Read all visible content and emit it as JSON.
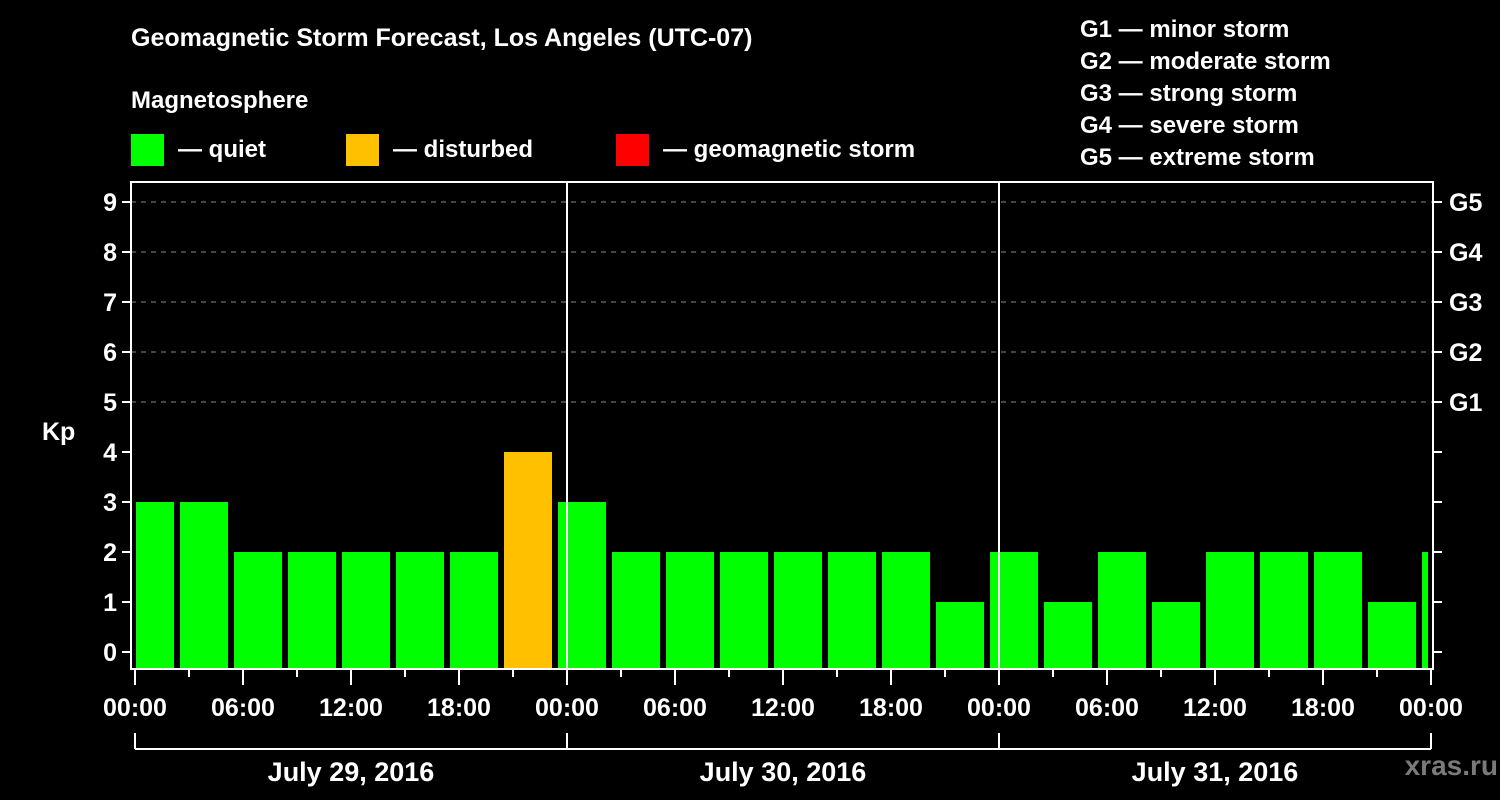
{
  "header": {
    "title": "Geomagnetic Storm Forecast, Los Angeles (UTC-07)",
    "subtitle": "Magnetosphere"
  },
  "legend": [
    {
      "label": "— quiet",
      "color": "#00ff00"
    },
    {
      "label": "— disturbed",
      "color": "#ffc000"
    },
    {
      "label": "— geomagnetic storm",
      "color": "#ff0000"
    }
  ],
  "g_scale": [
    "G1 — minor storm",
    "G2 — moderate storm",
    "G3 — strong storm",
    "G4 — severe storm",
    "G5 — extreme storm"
  ],
  "watermark": "xras.ru",
  "chart_data": {
    "type": "bar",
    "title": "Geomagnetic Storm Forecast, Los Angeles (UTC-07)",
    "ylabel": "Kp",
    "xlabel": "",
    "ylim": [
      0,
      9
    ],
    "yticks": [
      0,
      1,
      2,
      3,
      4,
      5,
      6,
      7,
      8,
      9
    ],
    "right_axis_labels": [
      {
        "kp": 5,
        "label": "G1"
      },
      {
        "kp": 6,
        "label": "G2"
      },
      {
        "kp": 7,
        "label": "G3"
      },
      {
        "kp": 8,
        "label": "G4"
      },
      {
        "kp": 9,
        "label": "G5"
      }
    ],
    "grid": "dashed horizontal lines at Kp 5–9",
    "x_tick_labels": [
      "00:00",
      "06:00",
      "12:00",
      "18:00",
      "00:00",
      "06:00",
      "12:00",
      "18:00",
      "00:00",
      "06:00",
      "12:00",
      "18:00",
      "00:00"
    ],
    "dates": [
      "July 29, 2016",
      "July 30, 2016",
      "July 31, 2016"
    ],
    "bar_interval_hours": 3,
    "first_bar_start_hour": -0.833,
    "categories": [
      "Jul29 ~00:00",
      "Jul29 ~02:10",
      "Jul29 ~05:10",
      "Jul29 ~08:10",
      "Jul29 ~11:10",
      "Jul29 ~14:10",
      "Jul29 ~17:10",
      "Jul29 ~20:10",
      "Jul29 ~23:10",
      "Jul30 ~02:10",
      "Jul30 ~05:10",
      "Jul30 ~08:10",
      "Jul30 ~11:10",
      "Jul30 ~14:10",
      "Jul30 ~17:10",
      "Jul30 ~20:10",
      "Jul30 ~23:10",
      "Jul31 ~02:10",
      "Jul31 ~05:10",
      "Jul31 ~08:10",
      "Jul31 ~11:10",
      "Jul31 ~14:10",
      "Jul31 ~17:10",
      "Jul31 ~20:10",
      "Jul31 ~23:10"
    ],
    "values": [
      3,
      3,
      2,
      2,
      2,
      2,
      2,
      4,
      3,
      2,
      2,
      2,
      2,
      2,
      2,
      1,
      2,
      1,
      2,
      1,
      2,
      2,
      2,
      1,
      2
    ],
    "colors": [
      "quiet",
      "quiet",
      "quiet",
      "quiet",
      "quiet",
      "quiet",
      "quiet",
      "disturbed",
      "quiet",
      "quiet",
      "quiet",
      "quiet",
      "quiet",
      "quiet",
      "quiet",
      "quiet",
      "quiet",
      "quiet",
      "quiet",
      "quiet",
      "quiet",
      "quiet",
      "quiet",
      "quiet",
      "quiet"
    ],
    "color_map": {
      "quiet": "#00ff00",
      "disturbed": "#ffc000",
      "storm": "#ff0000"
    }
  }
}
